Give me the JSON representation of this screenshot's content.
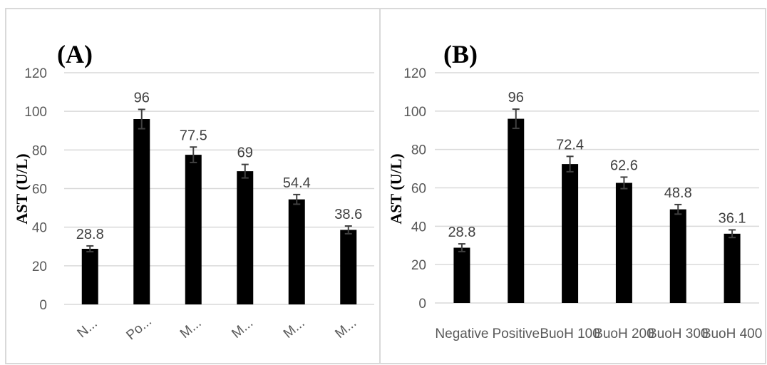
{
  "chart_data": [
    {
      "type": "bar",
      "title": "(A)",
      "ylabel": "AST (U/L)",
      "xlabel": "",
      "categories": [
        "N...",
        "Po...",
        "M...",
        "M...",
        "M...",
        "M..."
      ],
      "values": [
        28.8,
        96,
        77.5,
        69,
        54.4,
        38.6
      ],
      "errors": [
        1.5,
        5,
        4,
        3.5,
        2.5,
        2
      ],
      "data_labels": [
        "28.8",
        "96",
        "77.5",
        "69",
        "54.4",
        "38.6"
      ],
      "ylim": [
        0,
        120
      ],
      "yticks": [
        "0",
        "20",
        "40",
        "60",
        "80",
        "100",
        "120"
      ],
      "grid": true,
      "bar_color": "#000000",
      "x_tick_rotation": "rotated"
    },
    {
      "type": "bar",
      "title": "(B)",
      "ylabel": "AST (U/L)",
      "xlabel": "",
      "categories": [
        "Negative",
        "Positive",
        "BuoH 100",
        "BuoH 200",
        "BuoH 300",
        "BuoH 400"
      ],
      "values": [
        28.8,
        96,
        72.4,
        62.6,
        48.8,
        36.1
      ],
      "errors": [
        2,
        5,
        4,
        3,
        2.5,
        2
      ],
      "data_labels": [
        "28.8",
        "96",
        "72.4",
        "62.6",
        "48.8",
        "36.1"
      ],
      "ylim": [
        0,
        120
      ],
      "yticks": [
        "0",
        "20",
        "40",
        "60",
        "80",
        "100",
        "120"
      ],
      "grid": true,
      "bar_color": "#000000",
      "x_tick_rotation": "none"
    }
  ]
}
